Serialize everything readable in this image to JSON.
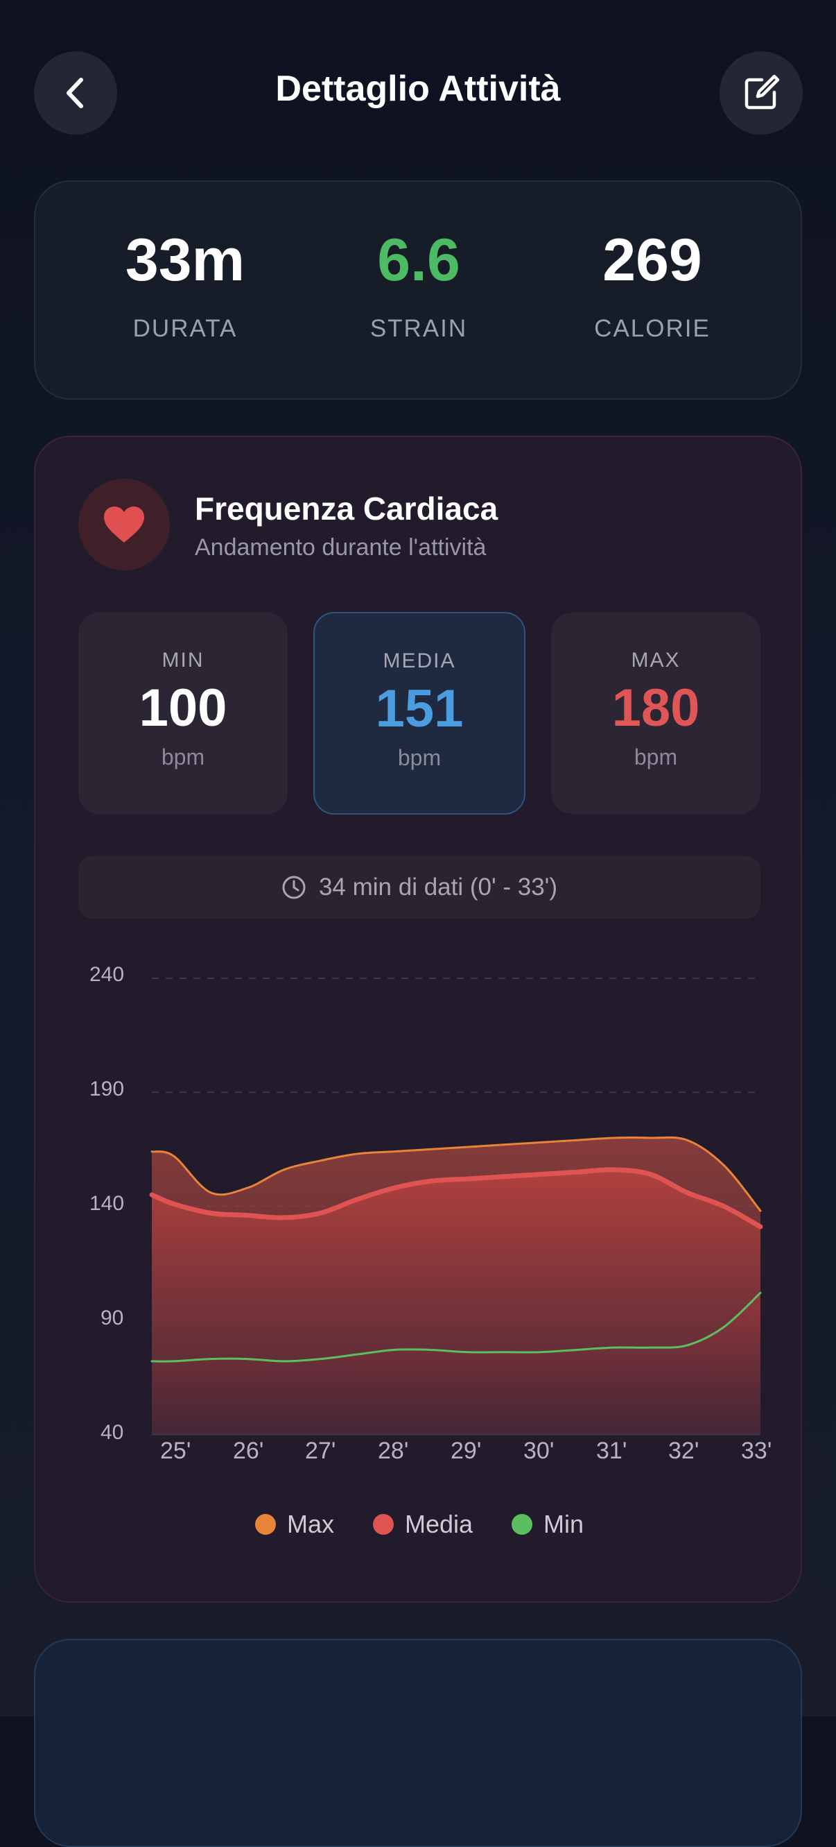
{
  "header": {
    "title": "Dettaglio Attività",
    "back_icon": "chevron-left-icon",
    "edit_icon": "edit-icon"
  },
  "summary": [
    {
      "value": "33m",
      "label": "DURATA",
      "color": "#ffffff"
    },
    {
      "value": "6.6",
      "label": "STRAIN",
      "color": "#4cbb63"
    },
    {
      "value": "269",
      "label": "CALORIE",
      "color": "#ffffff"
    }
  ],
  "heart_rate": {
    "title": "Frequenza Cardiaca",
    "subtitle": "Andamento durante l'attività",
    "icon": "heart-icon",
    "stats": [
      {
        "label": "MIN",
        "value": "100",
        "unit": "bpm",
        "color": "#ffffff"
      },
      {
        "label": "MEDIA",
        "value": "151",
        "unit": "bpm",
        "color": "#4a9de0"
      },
      {
        "label": "MAX",
        "value": "180",
        "unit": "bpm",
        "color": "#e05555"
      }
    ],
    "range_text": "34 min di dati (0' - 33')",
    "range_icon": "clock-icon"
  },
  "chart_data": {
    "type": "area",
    "x": [
      "24.7'",
      "25'",
      "25.5'",
      "26'",
      "26.5'",
      "27'",
      "27.5'",
      "28'",
      "28.5'",
      "29'",
      "29.5'",
      "30'",
      "30.5'",
      "31'",
      "31.5'",
      "32'",
      "32.5'",
      "33'"
    ],
    "categories": [
      "25'",
      "26'",
      "27'",
      "28'",
      "29'",
      "30'",
      "31'",
      "32'",
      "33'"
    ],
    "ylim": [
      40,
      240
    ],
    "yticks": [
      240,
      190,
      140,
      90,
      40
    ],
    "grid": true,
    "legend_position": "bottom",
    "series": [
      {
        "name": "Max",
        "color": "#e8833a",
        "values": [
          164,
          162,
          146,
          148,
          156,
          160,
          163,
          164,
          165,
          166,
          167,
          168,
          169,
          170,
          170,
          169,
          158,
          138
        ]
      },
      {
        "name": "Media",
        "color": "#e05353",
        "values": [
          145,
          141,
          137,
          136,
          135,
          137,
          143,
          148,
          151,
          152,
          153,
          154,
          155,
          156,
          154,
          146,
          140,
          131
        ]
      },
      {
        "name": "Min",
        "color": "#5cbf5f",
        "values": [
          72,
          72,
          73,
          73,
          72,
          73,
          75,
          77,
          77,
          76,
          76,
          76,
          77,
          78,
          78,
          79,
          87,
          102
        ]
      }
    ]
  }
}
